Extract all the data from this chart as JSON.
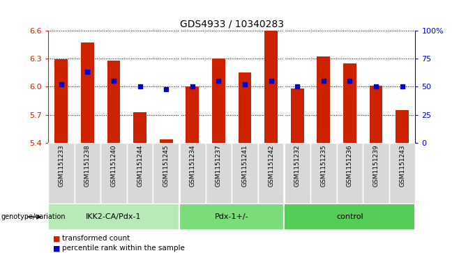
{
  "title": "GDS4933 / 10340283",
  "samples": [
    "GSM1151233",
    "GSM1151238",
    "GSM1151240",
    "GSM1151244",
    "GSM1151245",
    "GSM1151234",
    "GSM1151237",
    "GSM1151241",
    "GSM1151242",
    "GSM1151232",
    "GSM1151235",
    "GSM1151236",
    "GSM1151239",
    "GSM1151243"
  ],
  "transformed_count": [
    6.29,
    6.47,
    6.28,
    5.73,
    5.44,
    6.0,
    6.3,
    6.15,
    6.6,
    5.98,
    6.32,
    6.25,
    6.01,
    5.75
  ],
  "percentile_rank": [
    52,
    63,
    55,
    50,
    48,
    50,
    55,
    52,
    55,
    50,
    55,
    55,
    50,
    50
  ],
  "groups": [
    {
      "label": "IKK2-CA/Pdx-1",
      "start": 0,
      "end": 5,
      "color": "#b8eab8"
    },
    {
      "label": "Pdx-1+/-",
      "start": 5,
      "end": 9,
      "color": "#7add7a"
    },
    {
      "label": "control",
      "start": 9,
      "end": 14,
      "color": "#55cc55"
    }
  ],
  "ylim": [
    5.4,
    6.6
  ],
  "yticks": [
    5.4,
    5.7,
    6.0,
    6.3,
    6.6
  ],
  "right_yticks": [
    0,
    25,
    50,
    75,
    100
  ],
  "right_ylabels": [
    "0",
    "25",
    "50",
    "75",
    "100%"
  ],
  "bar_color": "#cc2200",
  "dot_color": "#0000cc",
  "bar_width": 0.5,
  "dot_size": 25,
  "plot_bg": "#ffffff",
  "label_bg": "#d8d8d8",
  "title_fontsize": 10,
  "label_fontsize": 6.5,
  "geno_fontsize": 8,
  "legend_fontsize": 7.5,
  "axis_fontsize": 8
}
